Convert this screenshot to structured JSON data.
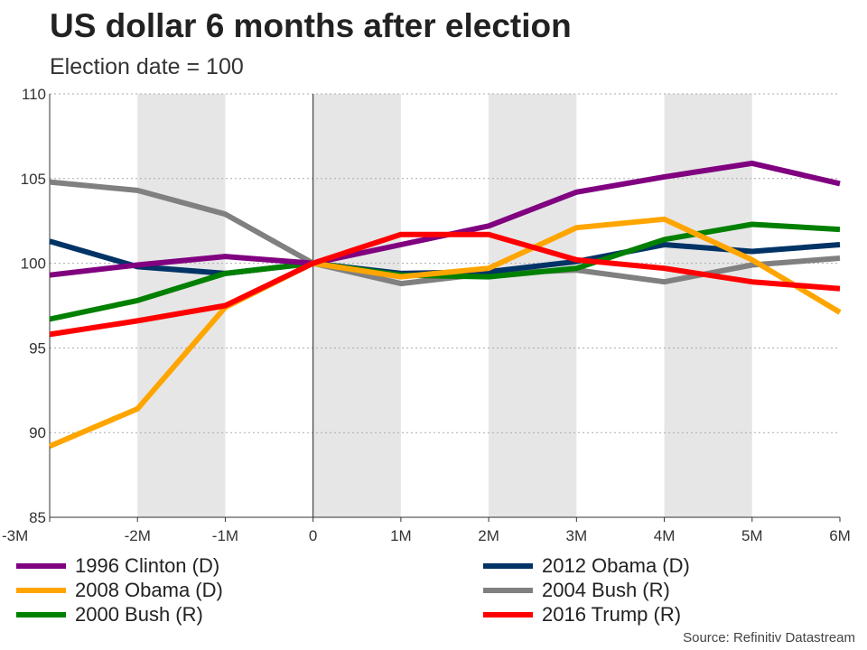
{
  "chart_data": {
    "type": "line",
    "title": "US dollar 6 months after election",
    "subtitle": "Election date = 100",
    "xlabel": "",
    "ylabel": "",
    "categories": [
      "-3M",
      "-2M",
      "-1M",
      "0",
      "1M",
      "2M",
      "3M",
      "4M",
      "5M",
      "6M"
    ],
    "x": [
      -3,
      -2,
      -1,
      0,
      1,
      2,
      3,
      4,
      5,
      6
    ],
    "ylim": [
      85,
      110
    ],
    "yticks": [
      85,
      90,
      95,
      100,
      105,
      110
    ],
    "grid": true,
    "shaded_months": [
      -2,
      0,
      2,
      4
    ],
    "series": [
      {
        "name": "1996 Clinton (D)",
        "color": "#800080",
        "values": [
          99.3,
          99.9,
          100.4,
          100.0,
          101.1,
          102.2,
          104.2,
          105.1,
          105.9,
          104.7
        ]
      },
      {
        "name": "2008 Obama (D)",
        "color": "#FFA500",
        "values": [
          89.2,
          91.4,
          97.4,
          100.0,
          99.2,
          99.7,
          102.1,
          102.6,
          100.2,
          97.1
        ]
      },
      {
        "name": "2000 Bush (R)",
        "color": "#008000",
        "values": [
          96.7,
          97.8,
          99.4,
          100.0,
          99.3,
          99.2,
          99.7,
          101.4,
          102.3,
          102.0
        ]
      },
      {
        "name": "2012 Obama (D)",
        "color": "#003366",
        "values": [
          101.3,
          99.8,
          99.4,
          100.0,
          99.4,
          99.5,
          100.1,
          101.1,
          100.7,
          101.1
        ]
      },
      {
        "name": "2004 Bush (R)",
        "color": "#808080",
        "values": [
          104.8,
          104.3,
          102.9,
          100.0,
          98.8,
          99.4,
          99.6,
          98.9,
          99.9,
          100.3
        ]
      },
      {
        "name": "2016 Trump (R)",
        "color": "#FF0000",
        "values": [
          95.8,
          96.6,
          97.5,
          100.0,
          101.7,
          101.7,
          100.2,
          99.7,
          98.9,
          98.5
        ]
      }
    ],
    "legend_order": [
      0,
      3,
      1,
      4,
      2,
      5
    ],
    "source": "Source: Refinitiv Datastream"
  }
}
